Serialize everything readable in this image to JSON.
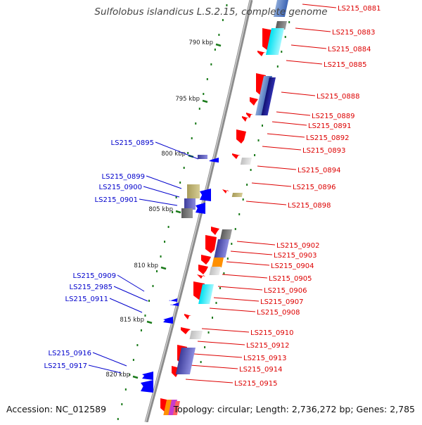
{
  "title": "Sulfolobus islandicus L.S.2.15, complete genome",
  "accession": "Accession: NC_012589",
  "topology": "Topology: circular; Length: 2,736,272 bp; Genes: 2,785",
  "colors": {
    "forward": "#ff0000",
    "reverse": "#0000ff",
    "backbone": "#8c8c8c",
    "tick": "#1a7a1a",
    "label_forward": "#dd0000",
    "label_reverse": "#0000cc"
  },
  "ticks": [
    "790 kbp",
    "795 kbp",
    "800 kbp",
    "805 kbp",
    "810 kbp",
    "815 kbp",
    "820 kbp"
  ],
  "forward_genes": [
    "LS215_0881",
    "LS215_0883",
    "LS215_0884",
    "LS215_0885",
    "LS215_0888",
    "LS215_0889",
    "LS215_0891",
    "LS215_0892",
    "LS215_0893",
    "LS215_0894",
    "LS215_0896",
    "LS215_0898",
    "LS215_0902",
    "LS215_0903",
    "LS215_0904",
    "LS215_0905",
    "LS215_0906",
    "LS215_0907",
    "LS215_0908",
    "LS215_0910",
    "LS215_0912",
    "LS215_0913",
    "LS215_0914",
    "LS215_0915"
  ],
  "reverse_genes": [
    "LS215_0895",
    "LS215_0899",
    "LS215_0900",
    "LS215_0901",
    "LS215_0909",
    "LS215_2985",
    "LS215_0911",
    "LS215_0916",
    "LS215_0917"
  ]
}
